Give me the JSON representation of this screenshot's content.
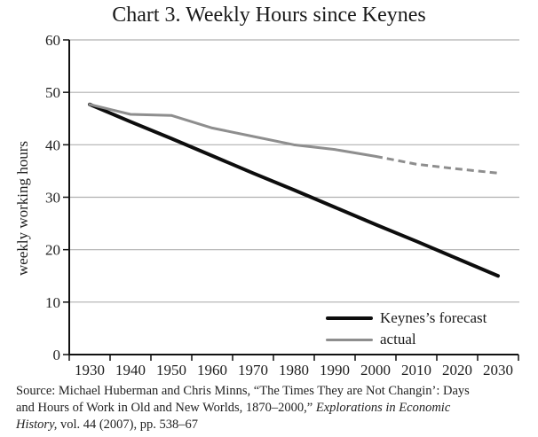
{
  "title": "Chart 3. Weekly Hours since Keynes",
  "y_axis_title": "weekly working hours",
  "legend": {
    "items": [
      {
        "label": "Keynes’s forecast",
        "color": "#0d0d0d"
      },
      {
        "label": "actual",
        "color": "#8e8e8e"
      }
    ]
  },
  "source": {
    "line1": "Source: Michael Huberman and Chris Minns, “The Times They are Not Changin’: Days",
    "line2_roman": "and Hours of Work in Old and New Worlds, 1870–2000,” ",
    "line2_italic": "Explorations in Economic",
    "line3_italic": "History,",
    "line3_roman": " vol. 44 (2007), pp. 538–67"
  },
  "chart_data": {
    "type": "line",
    "title": "Chart 3. Weekly Hours since Keynes",
    "xlabel": "",
    "ylabel": "weekly working hours",
    "categories": [
      1930,
      1940,
      1950,
      1960,
      1970,
      1980,
      1990,
      2000,
      2010,
      2020,
      2030
    ],
    "y_ticks": [
      0,
      10,
      20,
      30,
      40,
      50,
      60
    ],
    "ylim": [
      0,
      60
    ],
    "grid": "horizontal",
    "legend_position": "inside-bottom-right",
    "colors": {
      "gridline": "#b0b0b0",
      "axis": "#111111",
      "text": "#1f1f1f"
    },
    "series": [
      {
        "name": "Keynes’s forecast",
        "color": "#0d0d0d",
        "stroke_width": 4,
        "style": "solid",
        "values": [
          47.7,
          44.4,
          41.2,
          37.9,
          34.6,
          31.4,
          28.1,
          24.8,
          21.6,
          18.3,
          15.0
        ]
      },
      {
        "name": "actual",
        "color": "#8e8e8e",
        "stroke_width": 3,
        "style": "solid-then-dashed",
        "dashed_from_category": 2000,
        "values": [
          47.7,
          45.8,
          45.6,
          43.2,
          41.6,
          40.0,
          39.1,
          37.8,
          36.3,
          35.4,
          34.6
        ]
      }
    ]
  }
}
